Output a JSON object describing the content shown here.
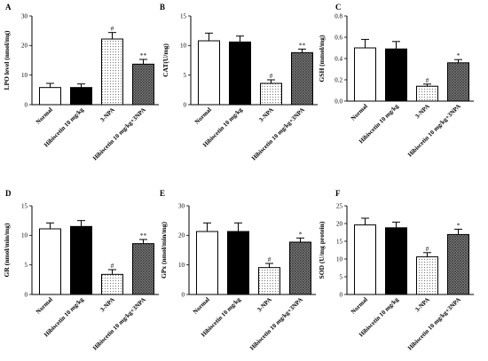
{
  "chart_data": [
    {
      "type": "bar",
      "panel": "A",
      "ylabel": "LPO level (nmol/mg)",
      "ylim": [
        0,
        30
      ],
      "yticks": [
        0,
        10,
        20,
        30
      ],
      "yticklabels": [
        "0",
        "10",
        "20",
        "30"
      ],
      "categories": [
        "Normal",
        "Hibiscetin 10 mg/kg",
        "3-NPA",
        "Hibiscetin 10 mg/kg+3NPA"
      ],
      "values": [
        5.8,
        5.8,
        22.2,
        13.7
      ],
      "errors": [
        1.4,
        1.2,
        2.2,
        1.6
      ],
      "significance": [
        "",
        "",
        "#",
        "**"
      ]
    },
    {
      "type": "bar",
      "panel": "B",
      "ylabel": "CAT(U/mg)",
      "ylim": [
        0,
        15
      ],
      "yticks": [
        0,
        5,
        10,
        15
      ],
      "yticklabels": [
        "0",
        "5",
        "10",
        "15"
      ],
      "categories": [
        "Normal",
        "Hibiscetin 10 mg/kg",
        "3-NPA",
        "Hibiscetin 10 mg/kg+3NPA"
      ],
      "values": [
        10.8,
        10.6,
        3.6,
        8.8
      ],
      "errors": [
        1.3,
        1.0,
        0.6,
        0.6
      ],
      "significance": [
        "",
        "",
        "#",
        "**"
      ]
    },
    {
      "type": "bar",
      "panel": "C",
      "ylabel": "GSH (mmol/mg)",
      "ylim": [
        0,
        0.8
      ],
      "yticks": [
        0,
        0.2,
        0.4,
        0.6,
        0.8
      ],
      "yticklabels": [
        "0.0",
        "0.2",
        "0.4",
        "0.6",
        "0.8"
      ],
      "categories": [
        "Normal",
        "Hibiscetin 10 mg/kg",
        "3-NPA",
        "Hibiscetin 10 mg/kg+3NPA"
      ],
      "values": [
        0.5,
        0.49,
        0.14,
        0.36
      ],
      "errors": [
        0.08,
        0.07,
        0.02,
        0.03
      ],
      "significance": [
        "",
        "",
        "#",
        "*"
      ]
    },
    {
      "type": "bar",
      "panel": "D",
      "ylabel": "GR (nmol/min/mg)",
      "ylim": [
        0,
        15
      ],
      "yticks": [
        0,
        5,
        10,
        15
      ],
      "yticklabels": [
        "0",
        "5",
        "10",
        "15"
      ],
      "categories": [
        "Normal",
        "Hibiscetin 10 mg/kg",
        "3-NPA",
        "Hibiscetin 10 mg/kg+3NPA"
      ],
      "values": [
        11.1,
        11.5,
        3.4,
        8.6
      ],
      "errors": [
        1.0,
        1.0,
        0.8,
        0.7
      ],
      "significance": [
        "",
        "",
        "#",
        "**"
      ]
    },
    {
      "type": "bar",
      "panel": "E",
      "ylabel": "GPx (nmol/min/mg)",
      "ylim": [
        0,
        30
      ],
      "yticks": [
        0,
        10,
        20,
        30
      ],
      "yticklabels": [
        "0",
        "10",
        "20",
        "30"
      ],
      "categories": [
        "Normal",
        "Hibiscetin 10 mg/kg",
        "3-NPA",
        "Hibiscetin 10 mg/kg+3NPA"
      ],
      "values": [
        21.3,
        21.3,
        9.1,
        17.7
      ],
      "errors": [
        2.9,
        2.9,
        1.4,
        1.4
      ],
      "significance": [
        "",
        "",
        "#",
        "*"
      ]
    },
    {
      "type": "bar",
      "panel": "F",
      "ylabel": "SOD (U/mg protein)",
      "ylim": [
        0,
        25
      ],
      "yticks": [
        0,
        5,
        10,
        15,
        20,
        25
      ],
      "yticklabels": [
        "0",
        "5",
        "10",
        "15",
        "20",
        "25"
      ],
      "categories": [
        "Normal",
        "Hibiscetin 10 mg/kg",
        "3-NPA",
        "Hibiscetin 10 mg/kg+3NPA"
      ],
      "values": [
        19.6,
        18.8,
        10.6,
        16.9
      ],
      "errors": [
        1.9,
        1.6,
        1.2,
        1.5
      ],
      "significance": [
        "",
        "",
        "#",
        "*"
      ]
    }
  ],
  "bar_styles": [
    "white",
    "black",
    "dotted",
    "crosshatch"
  ]
}
